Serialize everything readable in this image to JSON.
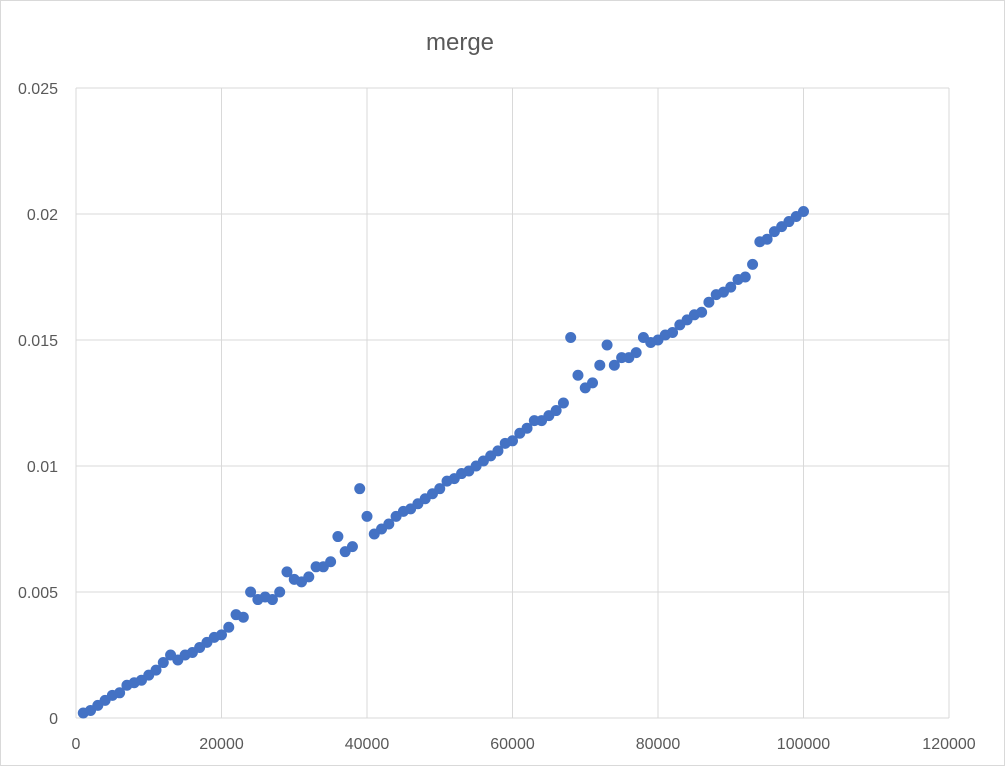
{
  "chart_data": {
    "type": "scatter",
    "title": "merge",
    "xlabel": "",
    "ylabel": "",
    "xlim": [
      0,
      120000
    ],
    "ylim": [
      0,
      0.025
    ],
    "x_ticks": [
      "0",
      "20000",
      "40000",
      "60000",
      "80000",
      "100000",
      "120000"
    ],
    "y_ticks": [
      "0",
      "0.005",
      "0.01",
      "0.015",
      "0.02",
      "0.025"
    ],
    "grid": true,
    "legend": "none",
    "colors": {
      "series": "#4472c4",
      "grid": "#d9d9d9",
      "text": "#595959"
    },
    "series": [
      {
        "points": [
          [
            1000,
            0.0002
          ],
          [
            2000,
            0.0003
          ],
          [
            3000,
            0.0005
          ],
          [
            4000,
            0.0007
          ],
          [
            5000,
            0.0009
          ],
          [
            6000,
            0.001
          ],
          [
            7000,
            0.0013
          ],
          [
            8000,
            0.0014
          ],
          [
            9000,
            0.0015
          ],
          [
            10000,
            0.0017
          ],
          [
            11000,
            0.0019
          ],
          [
            12000,
            0.0022
          ],
          [
            13000,
            0.0025
          ],
          [
            14000,
            0.0023
          ],
          [
            15000,
            0.0025
          ],
          [
            16000,
            0.0026
          ],
          [
            17000,
            0.0028
          ],
          [
            18000,
            0.003
          ],
          [
            19000,
            0.0032
          ],
          [
            20000,
            0.0033
          ],
          [
            21000,
            0.0036
          ],
          [
            22000,
            0.0041
          ],
          [
            23000,
            0.004
          ],
          [
            24000,
            0.005
          ],
          [
            25000,
            0.0047
          ],
          [
            26000,
            0.0048
          ],
          [
            27000,
            0.0047
          ],
          [
            28000,
            0.005
          ],
          [
            29000,
            0.0058
          ],
          [
            30000,
            0.0055
          ],
          [
            31000,
            0.0054
          ],
          [
            32000,
            0.0056
          ],
          [
            33000,
            0.006
          ],
          [
            34000,
            0.006
          ],
          [
            35000,
            0.0062
          ],
          [
            36000,
            0.0072
          ],
          [
            37000,
            0.0066
          ],
          [
            38000,
            0.0068
          ],
          [
            39000,
            0.0091
          ],
          [
            40000,
            0.008
          ],
          [
            41000,
            0.0073
          ],
          [
            42000,
            0.0075
          ],
          [
            43000,
            0.0077
          ],
          [
            44000,
            0.008
          ],
          [
            45000,
            0.0082
          ],
          [
            46000,
            0.0083
          ],
          [
            47000,
            0.0085
          ],
          [
            48000,
            0.0087
          ],
          [
            49000,
            0.0089
          ],
          [
            50000,
            0.0091
          ],
          [
            51000,
            0.0094
          ],
          [
            52000,
            0.0095
          ],
          [
            53000,
            0.0097
          ],
          [
            54000,
            0.0098
          ],
          [
            55000,
            0.01
          ],
          [
            56000,
            0.0102
          ],
          [
            57000,
            0.0104
          ],
          [
            58000,
            0.0106
          ],
          [
            59000,
            0.0109
          ],
          [
            60000,
            0.011
          ],
          [
            61000,
            0.0113
          ],
          [
            62000,
            0.0115
          ],
          [
            63000,
            0.0118
          ],
          [
            64000,
            0.0118
          ],
          [
            65000,
            0.012
          ],
          [
            66000,
            0.0122
          ],
          [
            67000,
            0.0125
          ],
          [
            68000,
            0.0151
          ],
          [
            69000,
            0.0136
          ],
          [
            70000,
            0.0131
          ],
          [
            71000,
            0.0133
          ],
          [
            72000,
            0.014
          ],
          [
            73000,
            0.0148
          ],
          [
            74000,
            0.014
          ],
          [
            75000,
            0.0143
          ],
          [
            76000,
            0.0143
          ],
          [
            77000,
            0.0145
          ],
          [
            78000,
            0.0151
          ],
          [
            79000,
            0.0149
          ],
          [
            80000,
            0.015
          ],
          [
            81000,
            0.0152
          ],
          [
            82000,
            0.0153
          ],
          [
            83000,
            0.0156
          ],
          [
            84000,
            0.0158
          ],
          [
            85000,
            0.016
          ],
          [
            86000,
            0.0161
          ],
          [
            87000,
            0.0165
          ],
          [
            88000,
            0.0168
          ],
          [
            89000,
            0.0169
          ],
          [
            90000,
            0.0171
          ],
          [
            91000,
            0.0174
          ],
          [
            92000,
            0.0175
          ],
          [
            93000,
            0.018
          ],
          [
            94000,
            0.0189
          ],
          [
            95000,
            0.019
          ],
          [
            96000,
            0.0193
          ],
          [
            97000,
            0.0195
          ],
          [
            98000,
            0.0197
          ],
          [
            99000,
            0.0199
          ],
          [
            100000,
            0.0201
          ]
        ]
      }
    ]
  }
}
